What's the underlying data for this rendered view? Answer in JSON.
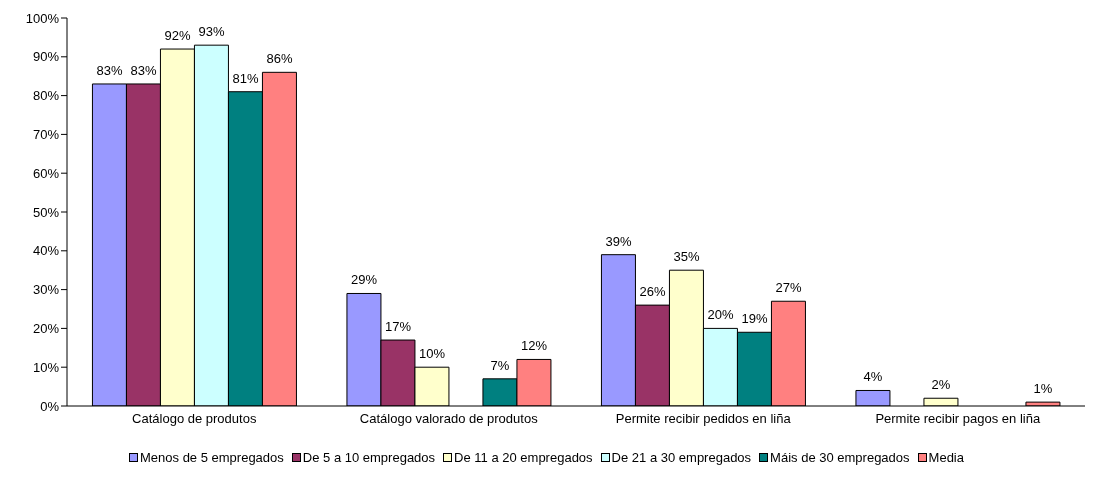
{
  "chart_data": {
    "type": "bar",
    "categories": [
      "Catálogo de produtos",
      "Catálogo valorado de produtos",
      "Permite recibir pedidos en liña",
      "Permite recibir pagos en liña"
    ],
    "series": [
      {
        "name": "Menos de 5 empregados",
        "color": "#9999ff",
        "values": [
          83,
          29,
          39,
          4
        ],
        "value_labels": [
          "83%",
          "29%",
          "39%",
          "4%"
        ]
      },
      {
        "name": "De 5 a 10 empregados",
        "color": "#993366",
        "values": [
          83,
          17,
          26,
          null
        ],
        "value_labels": [
          "83%",
          "17%",
          "26%",
          null
        ]
      },
      {
        "name": "De 11 a 20 empregados",
        "color": "#ffffcc",
        "values": [
          92,
          10,
          35,
          2
        ],
        "value_labels": [
          "92%",
          "10%",
          "35%",
          "2%"
        ]
      },
      {
        "name": "De 21 a 30 empregados",
        "color": "#ccffff",
        "values": [
          93,
          null,
          20,
          null
        ],
        "value_labels": [
          "93%",
          null,
          "20%",
          null
        ]
      },
      {
        "name": "Máis de 30 empregados",
        "color": "#008080",
        "values": [
          81,
          7,
          19,
          null
        ],
        "value_labels": [
          "81%",
          "7%",
          "19%",
          null
        ]
      },
      {
        "name": "Media",
        "color": "#ff8080",
        "values": [
          86,
          12,
          27,
          1
        ],
        "value_labels": [
          "86%",
          "12%",
          "27%",
          "1%"
        ]
      }
    ],
    "ylim": [
      0,
      100
    ],
    "yticks": [
      {
        "value": 0,
        "label": "0%"
      },
      {
        "value": 10,
        "label": "10%"
      },
      {
        "value": 20,
        "label": "20%"
      },
      {
        "value": 30,
        "label": "30%"
      },
      {
        "value": 40,
        "label": "40%"
      },
      {
        "value": 50,
        "label": "50%"
      },
      {
        "value": 60,
        "label": "60%"
      },
      {
        "value": 70,
        "label": "70%"
      },
      {
        "value": 80,
        "label": "80%"
      },
      {
        "value": 90,
        "label": "90%"
      },
      {
        "value": 100,
        "label": "100%"
      }
    ],
    "legend": "bottom"
  }
}
